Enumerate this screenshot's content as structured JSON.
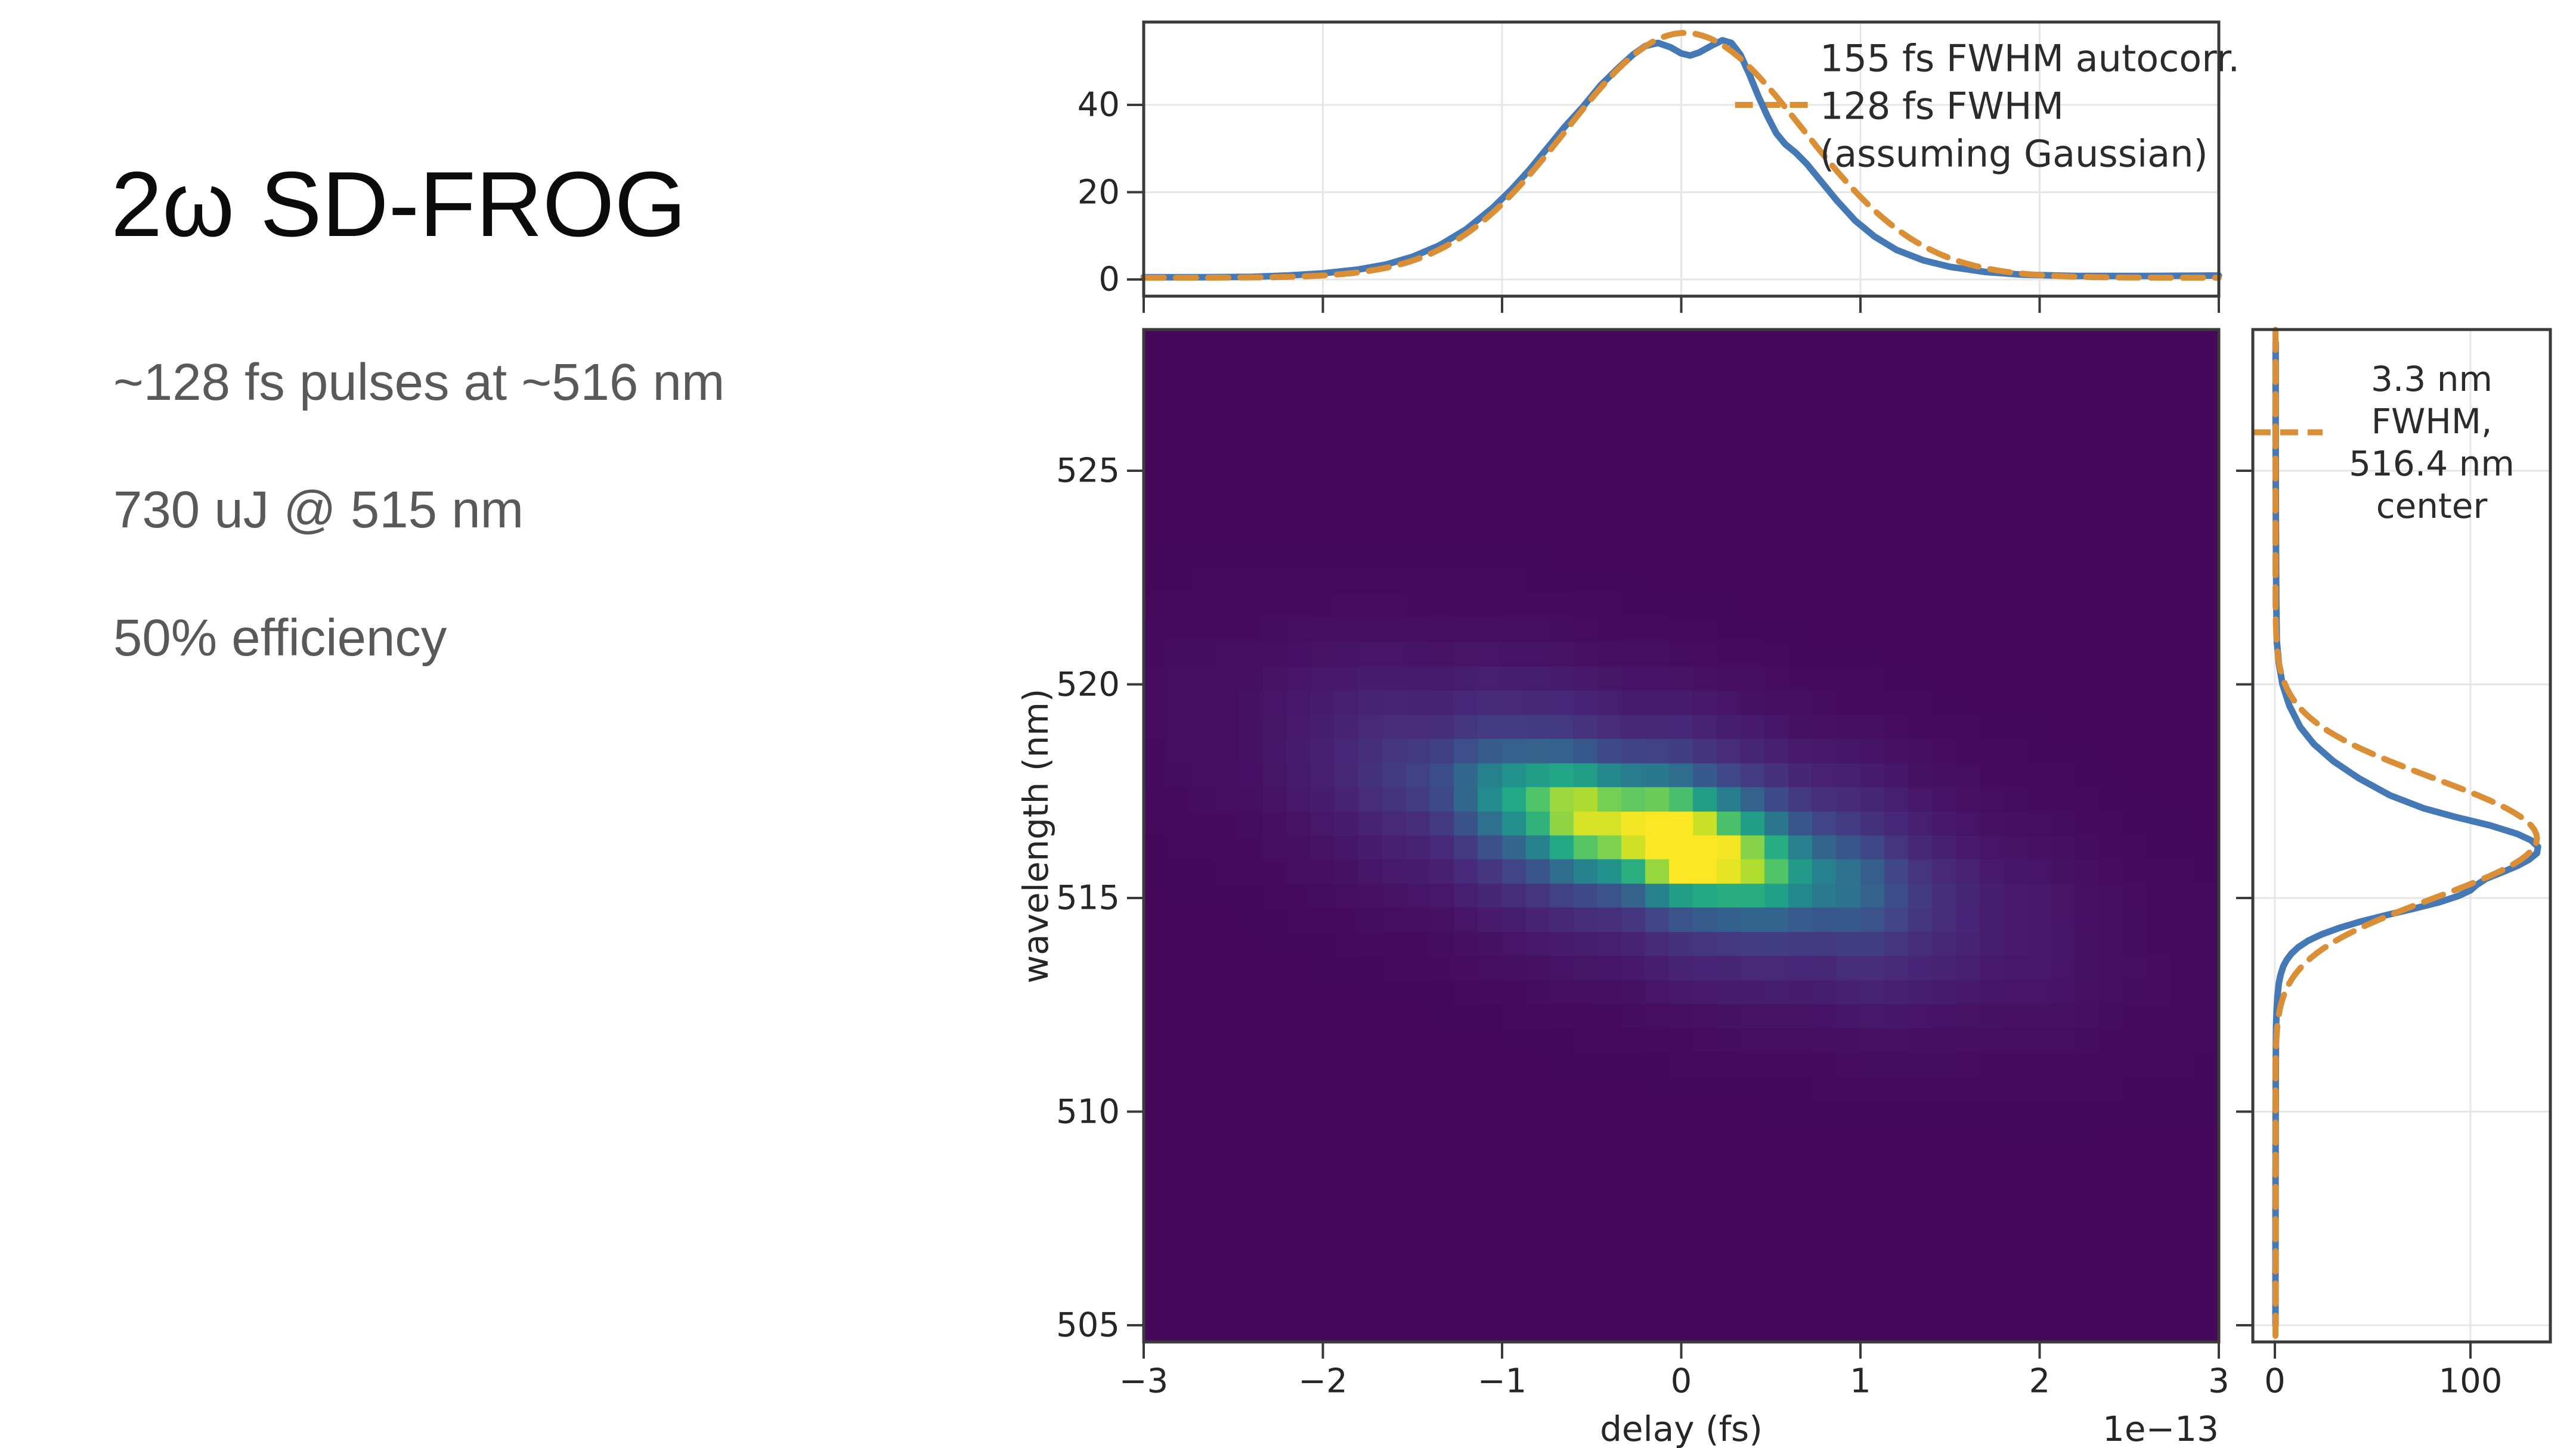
{
  "slide": {
    "title": "2ω SD-FROG",
    "bullets": [
      "~128 fs pulses at ~516 nm",
      "730 uJ @ 515 nm",
      "50% efficiency"
    ],
    "title_color": "#0b0b0b",
    "body_color": "#595959",
    "background": "#ffffff"
  },
  "style": {
    "measured_color": "#4579b6",
    "fit_color": "#da8e35",
    "grid_color": "#e6e6e6",
    "spine_color": "#3a3a3a",
    "tick_text_color": "#262626",
    "colormap": "viridis"
  },
  "chart_data": [
    {
      "id": "autocorrelation",
      "type": "line",
      "title": "",
      "xlabel": "",
      "ylabel": "",
      "xlim": [
        -3,
        3
      ],
      "ylim": [
        -3.8,
        59
      ],
      "yticks": [
        "0",
        "20",
        "40"
      ],
      "ytick_values": [
        0,
        20,
        40
      ],
      "xtick_values": [
        -3,
        -2,
        -1,
        0,
        1,
        2,
        3
      ],
      "grid": true,
      "annotation_lines": [
        "155 fs FWHM autocorr.",
        "128 fs FWHM",
        "(assuming Gaussian)"
      ],
      "series": [
        {
          "name": "measured autocorrelation",
          "style": "solid",
          "points": [
            [
              -3,
              0.5
            ],
            [
              -2.7,
              0.5
            ],
            [
              -2.4,
              0.6
            ],
            [
              -2.2,
              0.9
            ],
            [
              -2.0,
              1.4
            ],
            [
              -1.8,
              2.3
            ],
            [
              -1.65,
              3.4
            ],
            [
              -1.5,
              5.2
            ],
            [
              -1.35,
              7.8
            ],
            [
              -1.2,
              11.5
            ],
            [
              -1.05,
              16.5
            ],
            [
              -0.95,
              20.5
            ],
            [
              -0.85,
              25
            ],
            [
              -0.75,
              30
            ],
            [
              -0.65,
              35
            ],
            [
              -0.55,
              39.5
            ],
            [
              -0.45,
              44.5
            ],
            [
              -0.35,
              48.5
            ],
            [
              -0.27,
              51.5
            ],
            [
              -0.2,
              53.5
            ],
            [
              -0.13,
              54.2
            ],
            [
              -0.06,
              53.2
            ],
            [
              0.0,
              51.8
            ],
            [
              0.05,
              51.3
            ],
            [
              0.1,
              52
            ],
            [
              0.17,
              53.6
            ],
            [
              0.23,
              54.8
            ],
            [
              0.28,
              54.2
            ],
            [
              0.33,
              51.5
            ],
            [
              0.38,
              47
            ],
            [
              0.43,
              42
            ],
            [
              0.48,
              37.5
            ],
            [
              0.53,
              33.5
            ],
            [
              0.58,
              31
            ],
            [
              0.64,
              29
            ],
            [
              0.7,
              26.5
            ],
            [
              0.78,
              22.5
            ],
            [
              0.87,
              18
            ],
            [
              0.97,
              13.5
            ],
            [
              1.08,
              9.8
            ],
            [
              1.2,
              6.8
            ],
            [
              1.35,
              4.4
            ],
            [
              1.5,
              2.9
            ],
            [
              1.7,
              1.7
            ],
            [
              1.9,
              1.1
            ],
            [
              2.2,
              0.8
            ],
            [
              2.6,
              0.8
            ],
            [
              3,
              0.9
            ]
          ]
        },
        {
          "name": "Gaussian fit (155 fs FWHM)",
          "style": "dashed",
          "gaussian": {
            "center": 0.02,
            "peak": 56.5,
            "fwhm": 1.55,
            "baseline": 0.4
          }
        }
      ],
      "leader": {
        "y": 40,
        "x1": 0.3,
        "x2": 0.72
      }
    },
    {
      "id": "frog-trace",
      "type": "heatmap",
      "xlabel": "delay (fs)",
      "x_offset_label": "1e−13",
      "ylabel": "wavelength (nm)",
      "xlim": [
        -3,
        3
      ],
      "ylim": [
        504.6,
        528.3
      ],
      "xticks": [
        "−3",
        "−2",
        "−1",
        "0",
        "1",
        "2",
        "3"
      ],
      "xtick_values": [
        -3,
        -2,
        -1,
        0,
        1,
        2,
        3
      ],
      "yticks": [
        "525",
        "520",
        "515",
        "510",
        "505"
      ],
      "ytick_values": [
        525,
        520,
        515,
        510,
        505
      ],
      "colormap": "viridis",
      "grid_cols": 45,
      "grid_rows": 42,
      "model": {
        "center_delay": -0.12,
        "center_wavelength": 516.4,
        "ridge_slope": -1.05,
        "sigma_delay": 0.58,
        "sigma_wavelength": 0.8,
        "main_amp": 0.95,
        "ped_amp": 0.24,
        "ped_sigma_delay": 1.15,
        "ped_sigma_wavelength": 1.85,
        "floor": 0.02,
        "stripe1_amp": 0.09,
        "stripe1_freq": 6.3,
        "stripe1_phase": 0.7,
        "stripe2_amp": 0.05,
        "stripe2_freq": 11.7,
        "stripe2_phase": 2.1,
        "row_amp": 0.04,
        "row_freq": 2.6
      }
    },
    {
      "id": "spectrum",
      "type": "line",
      "orientation": "vertical",
      "xlabel": "",
      "ylabel": "",
      "xlim": [
        -11.3,
        140.9
      ],
      "ylim": [
        504.6,
        528.3
      ],
      "xticks": [
        "0",
        "100"
      ],
      "xtick_values": [
        0,
        100
      ],
      "grid": true,
      "annotation_lines": [
        "3.3 nm",
        "FWHM,",
        "516.4 nm",
        "center"
      ],
      "series": [
        {
          "name": "measured spectrum",
          "style": "solid",
          "points": [
            [
              528,
              0.4
            ],
            [
              526,
              0.4
            ],
            [
              524,
              0.5
            ],
            [
              522,
              0.7
            ],
            [
              521,
              1.0
            ],
            [
              520.5,
              2.0
            ],
            [
              520,
              3.9
            ],
            [
              519.5,
              7.4
            ],
            [
              519,
              13
            ],
            [
              518.6,
              20
            ],
            [
              518.2,
              30
            ],
            [
              517.8,
              43
            ],
            [
              517.4,
              59
            ],
            [
              517.1,
              76
            ],
            [
              516.9,
              92
            ],
            [
              516.7,
              110
            ],
            [
              516.5,
              124
            ],
            [
              516.35,
              131
            ],
            [
              516.2,
              134.5
            ],
            [
              516.05,
              134
            ],
            [
              515.9,
              130
            ],
            [
              515.75,
              124
            ],
            [
              515.6,
              116
            ],
            [
              515.45,
              108
            ],
            [
              515.3,
              103
            ],
            [
              515.18,
              100
            ],
            [
              515.05,
              94
            ],
            [
              514.9,
              84
            ],
            [
              514.75,
              71
            ],
            [
              514.6,
              57
            ],
            [
              514.45,
              44
            ],
            [
              514.3,
              33
            ],
            [
              514.15,
              24
            ],
            [
              514.0,
              17
            ],
            [
              513.85,
              12
            ],
            [
              513.7,
              8.5
            ],
            [
              513.55,
              6
            ],
            [
              513.4,
              4.3
            ],
            [
              513.2,
              2.9
            ],
            [
              513.0,
              2.0
            ],
            [
              512.7,
              1.3
            ],
            [
              512.4,
              0.9
            ],
            [
              512,
              0.6
            ],
            [
              511,
              0.45
            ],
            [
              510,
              0.4
            ],
            [
              508,
              0.35
            ],
            [
              506,
              0.3
            ],
            [
              505,
              0.3
            ]
          ]
        },
        {
          "name": "Gaussian fit (3.3 nm FWHM)",
          "style": "dashed",
          "gaussian": {
            "center": 516.4,
            "peak": 134,
            "fwhm": 3.3,
            "baseline": 0.3
          }
        }
      ],
      "leader": {
        "wavelength": 525.9,
        "x1": -11.3,
        "x2": 24.4
      }
    }
  ]
}
